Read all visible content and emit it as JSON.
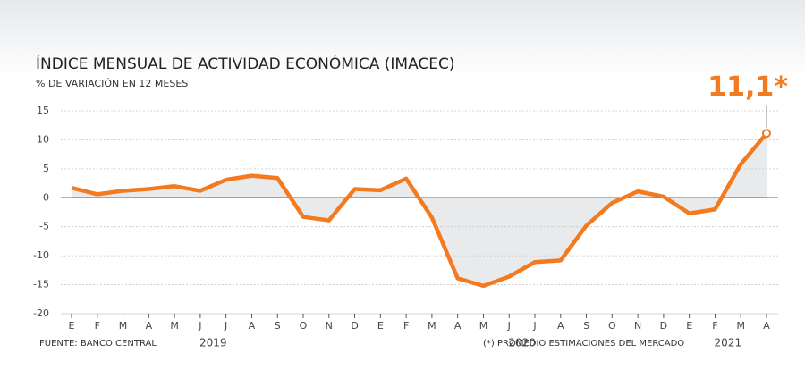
{
  "chart_data": {
    "type": "line",
    "title": "ÍNDICE MENSUAL DE ACTIVIDAD ECONÓMICA (IMACEC)",
    "subtitle": "% DE VARIACIÓN EN 12 MESES",
    "source": "FUENTE: BANCO CENTRAL",
    "note": "(*) PROMEDIO ESTIMACIONES DEL MERCADO",
    "categories": [
      "E",
      "F",
      "M",
      "A",
      "M",
      "J",
      "J",
      "A",
      "S",
      "O",
      "N",
      "D",
      "E",
      "F",
      "M",
      "A",
      "M",
      "J",
      "J",
      "A",
      "S",
      "O",
      "N",
      "D",
      "E",
      "F",
      "M",
      "A"
    ],
    "year_groups": [
      {
        "label": "2019",
        "count": 12
      },
      {
        "label": "2020",
        "count": 12
      },
      {
        "label": "2021",
        "count": 4
      }
    ],
    "series": [
      {
        "name": "IMACEC",
        "color": "#f47a20",
        "values": [
          1.7,
          0.6,
          1.2,
          1.5,
          2.0,
          1.2,
          3.1,
          3.8,
          3.4,
          -3.3,
          -3.9,
          1.5,
          1.3,
          3.3,
          -3.4,
          -13.9,
          -15.2,
          -13.6,
          -11.1,
          -10.8,
          -4.8,
          -0.9,
          1.1,
          0.2,
          -2.7,
          -2.0,
          5.8,
          11.1
        ],
        "value_labels": [
          null,
          null,
          null,
          null,
          null,
          null,
          null,
          null,
          null,
          null,
          null,
          null,
          null,
          null,
          null,
          null,
          null,
          null,
          null,
          null,
          null,
          null,
          null,
          null,
          null,
          null,
          null,
          "11,1*"
        ]
      }
    ],
    "ylim": [
      -20,
      17
    ],
    "yticks": [
      15,
      10,
      5,
      0,
      -5,
      -10,
      -15,
      -20
    ],
    "grid": true,
    "area_color": "#e8eaec"
  }
}
